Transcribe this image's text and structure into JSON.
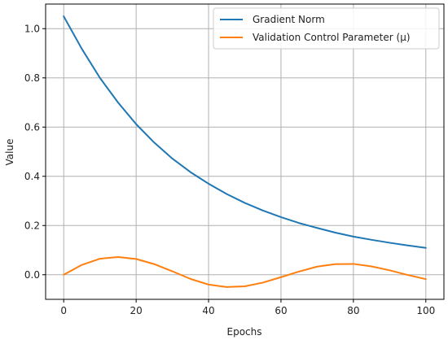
{
  "chart_data": {
    "type": "line",
    "title": "",
    "xlabel": "Epochs",
    "ylabel": "Value",
    "xlim": [
      -5,
      105
    ],
    "ylim": [
      -0.1,
      1.1
    ],
    "xticks": [
      0,
      20,
      40,
      60,
      80,
      100
    ],
    "yticks": [
      0.0,
      0.2,
      0.4,
      0.6,
      0.8,
      1.0
    ],
    "xtick_labels": [
      "0",
      "20",
      "40",
      "60",
      "80",
      "100"
    ],
    "ytick_labels": [
      "0.0",
      "0.2",
      "0.4",
      "0.6",
      "0.8",
      "1.0"
    ],
    "grid": true,
    "legend_position": "top-right",
    "x": [
      0,
      5,
      10,
      15,
      20,
      25,
      30,
      35,
      40,
      45,
      50,
      55,
      60,
      65,
      70,
      75,
      80,
      85,
      90,
      95,
      100
    ],
    "series": [
      {
        "name": "Gradient Norm",
        "color": "#1f77b4",
        "values": [
          1.05,
          0.918,
          0.8,
          0.7,
          0.612,
          0.537,
          0.472,
          0.417,
          0.37,
          0.328,
          0.292,
          0.261,
          0.234,
          0.21,
          0.19,
          0.171,
          0.155,
          0.142,
          0.13,
          0.119,
          0.109
        ]
      },
      {
        "name": "Validation Control Parameter (μ)",
        "color": "#ff7f0e",
        "values": [
          0.0,
          0.04,
          0.065,
          0.072,
          0.064,
          0.043,
          0.014,
          -0.017,
          -0.04,
          -0.05,
          -0.047,
          -0.032,
          -0.01,
          0.013,
          0.033,
          0.043,
          0.044,
          0.034,
          0.018,
          -0.001,
          -0.018
        ]
      }
    ]
  }
}
